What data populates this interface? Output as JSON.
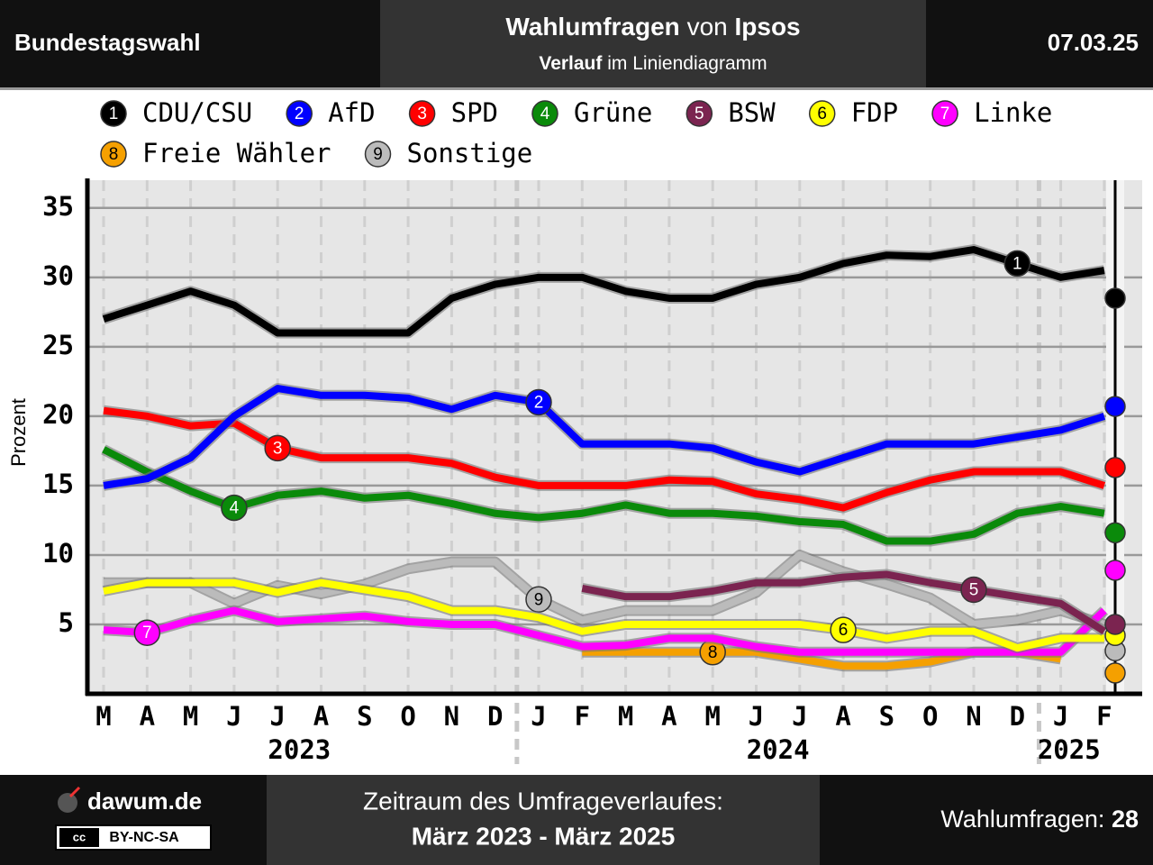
{
  "header": {
    "left": "Bundestagswahl",
    "title_bold": "Wahlumfragen",
    "title_mid": "von",
    "title_source": "Ipsos",
    "subtitle_bold": "Verlauf",
    "subtitle_rest": "im Liniendiagramm",
    "date": "07.03.25"
  },
  "footer": {
    "site": "dawum.de",
    "cc": "cc",
    "license": "BY-NC-SA",
    "period_label": "Zeitraum des Umfrageverlaufes:",
    "period": "März 2023 - März 2025",
    "count_label": "Wahlumfragen:",
    "count": 28
  },
  "chart_data": {
    "type": "line",
    "ylabel": "Prozent",
    "categories": [
      "M",
      "A",
      "M",
      "J",
      "J",
      "A",
      "S",
      "O",
      "N",
      "D",
      "J",
      "F",
      "M",
      "A",
      "M",
      "J",
      "J",
      "A",
      "S",
      "O",
      "N",
      "D",
      "J",
      "F"
    ],
    "year_labels": [
      "2023",
      "2024",
      "2025"
    ],
    "ylim": [
      0,
      37
    ],
    "yticks": [
      5,
      10,
      15,
      20,
      25,
      30,
      35
    ],
    "grid": true,
    "series": [
      {
        "name": "CDU/CSU",
        "number": "1",
        "color": "#000000",
        "latest": 28.5,
        "values": [
          27,
          28,
          29,
          28,
          26,
          26,
          26,
          26,
          28.5,
          29.5,
          30,
          30,
          29,
          28.5,
          28.5,
          29.5,
          30,
          31,
          31.6,
          31.5,
          32,
          31,
          30,
          30.5
        ]
      },
      {
        "name": "AfD",
        "number": "2",
        "color": "#0000ff",
        "latest": 20.7,
        "values": [
          15,
          15.5,
          17,
          20,
          22,
          21.5,
          21.5,
          21.3,
          20.5,
          21.5,
          21,
          18,
          18,
          18,
          17.7,
          16.7,
          16,
          17,
          18,
          18,
          18,
          18.5,
          19,
          20
        ]
      },
      {
        "name": "SPD",
        "number": "3",
        "color": "#ff0000",
        "latest": 16.3,
        "values": [
          20.4,
          20,
          19.3,
          19.5,
          17.7,
          17,
          17,
          17,
          16.6,
          15.6,
          15,
          15,
          15,
          15.4,
          15.3,
          14.4,
          14,
          13.4,
          14.5,
          15.4,
          16,
          16,
          16,
          15
        ]
      },
      {
        "name": "Grüne",
        "number": "4",
        "color": "#0a8a0a",
        "latest": 11.6,
        "values": [
          17.6,
          16,
          14.6,
          13.4,
          14.3,
          14.6,
          14.1,
          14.3,
          13.7,
          13,
          12.7,
          13,
          13.6,
          13,
          13,
          12.8,
          12.4,
          12.2,
          11,
          11,
          11.5,
          13,
          13.5,
          13
        ]
      },
      {
        "name": "BSW",
        "number": "5",
        "color": "#7b2450",
        "latest": 5,
        "values": [
          null,
          null,
          null,
          null,
          null,
          null,
          null,
          null,
          null,
          null,
          null,
          7.6,
          7,
          7,
          7.4,
          8,
          8,
          8.4,
          8.6,
          8,
          7.5,
          7,
          6.5,
          4.5
        ]
      },
      {
        "name": "FDP",
        "number": "6",
        "color": "#ffff00",
        "latest": 4.2,
        "values": [
          7.4,
          8,
          8,
          8,
          7.3,
          8,
          7.5,
          7,
          6,
          6,
          5.5,
          4.5,
          5,
          5,
          5,
          5,
          5,
          4.6,
          4,
          4.5,
          4.5,
          3.3,
          4,
          4
        ]
      },
      {
        "name": "Linke",
        "number": "7",
        "color": "#ff00ff",
        "latest": 8.9,
        "values": [
          4.6,
          4.4,
          5.3,
          6,
          5.2,
          5.4,
          5.6,
          5.2,
          5,
          5,
          4.2,
          3.4,
          3.5,
          4,
          4,
          3.4,
          3,
          3,
          3,
          3,
          3,
          3,
          3,
          6
        ]
      },
      {
        "name": "Freie Wähler",
        "number": "8",
        "color": "#f5a000",
        "latest": 1.5,
        "values": [
          null,
          null,
          null,
          null,
          null,
          null,
          null,
          null,
          null,
          null,
          null,
          3,
          3,
          3,
          3,
          3,
          2.5,
          2,
          2,
          2.3,
          3,
          3,
          2.5,
          null
        ]
      },
      {
        "name": "Sonstige",
        "number": "9",
        "color": "#bbbbbb",
        "latest": 3.1,
        "values": [
          8,
          8,
          8,
          6.5,
          7.8,
          7.2,
          7.9,
          9,
          9.5,
          9.5,
          6.8,
          5.3,
          6,
          6,
          6,
          7.3,
          10,
          8.8,
          7.9,
          6.9,
          5,
          5.3,
          6,
          5
        ]
      }
    ]
  }
}
